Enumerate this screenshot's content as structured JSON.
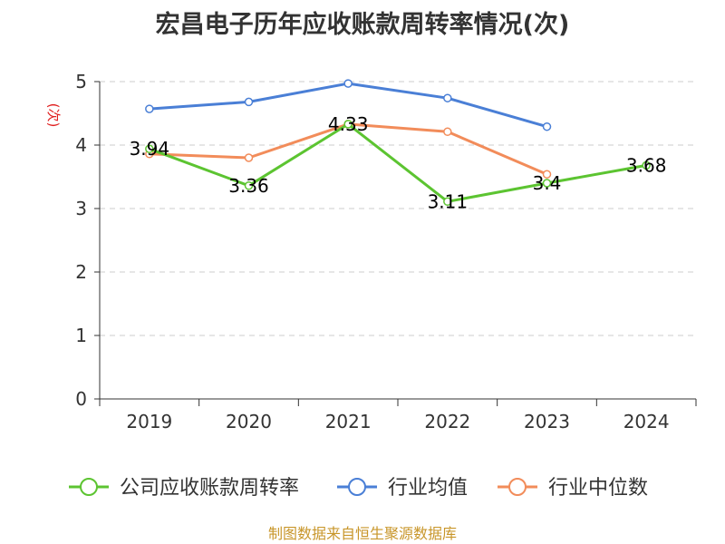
{
  "chart_data": {
    "type": "line",
    "title": "宏昌电子历年应收账款周转率情况(次)",
    "ylabel": "(次)",
    "xlabel": "",
    "categories": [
      "2019",
      "2020",
      "2021",
      "2022",
      "2023",
      "2024"
    ],
    "ylim": [
      0,
      5
    ],
    "yticks": [
      "0",
      "1",
      "2",
      "3",
      "4",
      "5"
    ],
    "grid": true,
    "legend_position": "bottom",
    "series": [
      {
        "name": "公司应收账款周转率",
        "color": "#5cc431",
        "values": [
          3.94,
          3.36,
          4.33,
          3.11,
          3.4,
          3.68
        ],
        "labels": [
          "3.94",
          "3.36",
          "4.33",
          "3.11",
          "3.4",
          "3.68"
        ]
      },
      {
        "name": "行业均值",
        "color": "#4a7fd6",
        "values": [
          4.57,
          4.68,
          4.97,
          4.74,
          4.29,
          null
        ]
      },
      {
        "name": "行业中位数",
        "color": "#f28c5a",
        "values": [
          3.86,
          3.8,
          4.33,
          4.21,
          3.54,
          null
        ]
      }
    ],
    "source": "制图数据来自恒生聚源数据库"
  }
}
